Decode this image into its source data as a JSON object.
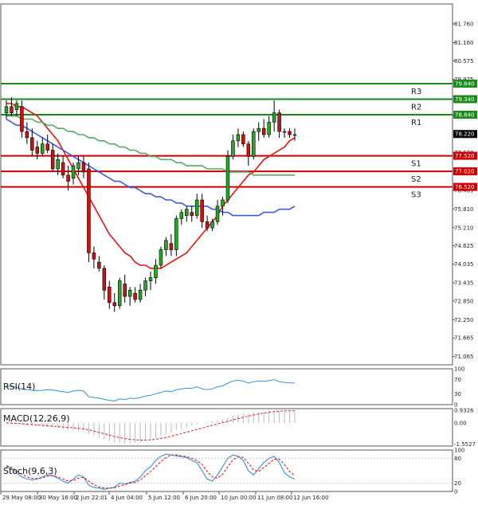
{
  "chart_data": [
    {
      "type": "candlestick",
      "title": "",
      "xlabel": "",
      "ylabel": "",
      "ylim": [
        70.8,
        82.4
      ],
      "y_ticks": [
        "81.760",
        "81.160",
        "80.575",
        "79.975",
        "78.820",
        "77.630",
        "76.405",
        "75.810",
        "75.210",
        "74.625",
        "74.035",
        "73.435",
        "72.850",
        "72.250",
        "71.665",
        "71.065"
      ],
      "x_ticks": [
        "29 May 08:00",
        "30 May 16:00",
        "2 Jun 22:01",
        "4 Jun 04:00",
        "5 Jun 12:00",
        "6 Jun 20:00",
        "10 Jun 00:00",
        "11 Jun 08:00",
        "12 Jun 16:00"
      ],
      "levels": [
        {
          "name": "R3",
          "value": 79.84,
          "tag": "79.840",
          "color": "#1a8a1a"
        },
        {
          "name": "R2",
          "value": 79.34,
          "tag": "79.340",
          "color": "#1a8a1a"
        },
        {
          "name": "R1",
          "value": 78.84,
          "tag": "78.840",
          "color": "#1a8a1a"
        },
        {
          "name": "S1",
          "value": 77.52,
          "tag": "77.520",
          "color": "#cc0000"
        },
        {
          "name": "S2",
          "value": 77.02,
          "tag": "77.020",
          "color": "#cc0000"
        },
        {
          "name": "S3",
          "value": 76.52,
          "tag": "76.520",
          "color": "#cc0000"
        }
      ],
      "current_price": {
        "value": 78.22,
        "tag": "78.220"
      },
      "candles": [
        {
          "o": 78.9,
          "h": 79.3,
          "l": 78.7,
          "c": 79.1
        },
        {
          "o": 79.1,
          "h": 79.4,
          "l": 78.8,
          "c": 78.9
        },
        {
          "o": 79.0,
          "h": 79.3,
          "l": 78.8,
          "c": 79.2
        },
        {
          "o": 79.1,
          "h": 79.3,
          "l": 78.1,
          "c": 78.3
        },
        {
          "o": 78.3,
          "h": 78.6,
          "l": 77.9,
          "c": 78.1
        },
        {
          "o": 78.1,
          "h": 78.4,
          "l": 77.5,
          "c": 77.7
        },
        {
          "o": 77.8,
          "h": 78.0,
          "l": 77.4,
          "c": 77.6
        },
        {
          "o": 77.6,
          "h": 78.1,
          "l": 77.5,
          "c": 77.9
        },
        {
          "o": 77.9,
          "h": 78.2,
          "l": 77.6,
          "c": 77.7
        },
        {
          "o": 77.7,
          "h": 77.9,
          "l": 77.0,
          "c": 77.1
        },
        {
          "o": 77.1,
          "h": 77.6,
          "l": 76.9,
          "c": 77.4
        },
        {
          "o": 77.3,
          "h": 77.5,
          "l": 76.8,
          "c": 76.9
        },
        {
          "o": 76.9,
          "h": 77.2,
          "l": 76.4,
          "c": 76.7
        },
        {
          "o": 76.8,
          "h": 77.3,
          "l": 76.6,
          "c": 77.2
        },
        {
          "o": 77.1,
          "h": 77.5,
          "l": 76.9,
          "c": 77.3
        },
        {
          "o": 77.3,
          "h": 77.5,
          "l": 76.8,
          "c": 77.0
        },
        {
          "o": 77.1,
          "h": 77.3,
          "l": 74.1,
          "c": 74.4
        },
        {
          "o": 74.4,
          "h": 74.6,
          "l": 73.9,
          "c": 74.2
        },
        {
          "o": 74.1,
          "h": 74.3,
          "l": 73.8,
          "c": 73.9
        },
        {
          "o": 73.9,
          "h": 74.0,
          "l": 72.9,
          "c": 73.2
        },
        {
          "o": 73.3,
          "h": 73.5,
          "l": 72.6,
          "c": 72.8
        },
        {
          "o": 72.8,
          "h": 73.1,
          "l": 72.5,
          "c": 72.7
        },
        {
          "o": 72.7,
          "h": 73.6,
          "l": 72.6,
          "c": 73.5
        },
        {
          "o": 73.4,
          "h": 73.7,
          "l": 72.8,
          "c": 73.0
        },
        {
          "o": 73.0,
          "h": 73.3,
          "l": 72.7,
          "c": 73.2
        },
        {
          "o": 73.1,
          "h": 73.3,
          "l": 72.8,
          "c": 72.9
        },
        {
          "o": 72.9,
          "h": 73.4,
          "l": 72.8,
          "c": 73.2
        },
        {
          "o": 73.2,
          "h": 73.6,
          "l": 73.0,
          "c": 73.5
        },
        {
          "o": 73.5,
          "h": 73.8,
          "l": 73.2,
          "c": 73.6
        },
        {
          "o": 73.6,
          "h": 74.2,
          "l": 73.4,
          "c": 74.0
        },
        {
          "o": 74.0,
          "h": 74.6,
          "l": 73.9,
          "c": 74.5
        },
        {
          "o": 74.5,
          "h": 74.9,
          "l": 74.3,
          "c": 74.8
        },
        {
          "o": 74.7,
          "h": 75.0,
          "l": 74.3,
          "c": 74.5
        },
        {
          "o": 74.5,
          "h": 75.6,
          "l": 74.3,
          "c": 75.5
        },
        {
          "o": 75.5,
          "h": 75.8,
          "l": 75.3,
          "c": 75.7
        },
        {
          "o": 75.6,
          "h": 75.9,
          "l": 75.4,
          "c": 75.8
        },
        {
          "o": 75.7,
          "h": 75.9,
          "l": 75.4,
          "c": 75.6
        },
        {
          "o": 75.6,
          "h": 76.3,
          "l": 75.5,
          "c": 76.1
        },
        {
          "o": 76.1,
          "h": 76.3,
          "l": 75.2,
          "c": 75.4
        },
        {
          "o": 75.4,
          "h": 75.6,
          "l": 75.1,
          "c": 75.2
        },
        {
          "o": 75.2,
          "h": 75.5,
          "l": 75.1,
          "c": 75.4
        },
        {
          "o": 75.4,
          "h": 76.1,
          "l": 75.3,
          "c": 75.9
        },
        {
          "o": 75.9,
          "h": 76.2,
          "l": 75.6,
          "c": 76.1
        },
        {
          "o": 76.1,
          "h": 77.7,
          "l": 76.0,
          "c": 77.5
        },
        {
          "o": 77.5,
          "h": 78.2,
          "l": 77.4,
          "c": 78.0
        },
        {
          "o": 78.0,
          "h": 78.4,
          "l": 77.8,
          "c": 78.2
        },
        {
          "o": 78.2,
          "h": 78.3,
          "l": 77.8,
          "c": 77.9
        },
        {
          "o": 77.9,
          "h": 78.0,
          "l": 77.2,
          "c": 77.5
        },
        {
          "o": 77.5,
          "h": 78.4,
          "l": 77.4,
          "c": 78.3
        },
        {
          "o": 78.3,
          "h": 78.6,
          "l": 78.0,
          "c": 78.4
        },
        {
          "o": 78.4,
          "h": 78.7,
          "l": 78.1,
          "c": 78.2
        },
        {
          "o": 78.2,
          "h": 78.8,
          "l": 78.1,
          "c": 78.6
        },
        {
          "o": 78.6,
          "h": 79.3,
          "l": 78.3,
          "c": 78.9
        },
        {
          "o": 78.9,
          "h": 79.0,
          "l": 78.1,
          "c": 78.3
        },
        {
          "o": 78.3,
          "h": 78.4,
          "l": 78.1,
          "c": 78.3
        },
        {
          "o": 78.3,
          "h": 78.4,
          "l": 78.1,
          "c": 78.2
        },
        {
          "o": 78.2,
          "h": 78.4,
          "l": 78.0,
          "c": 78.2
        }
      ],
      "moving_averages": [
        {
          "color": "#ee1111",
          "values": [
            79.2,
            79.2,
            79.1,
            79.1,
            79.0,
            78.9,
            78.8,
            78.6,
            78.4,
            78.2,
            78.0,
            77.7,
            77.4,
            77.1,
            76.8,
            76.5,
            76.2,
            75.9,
            75.6,
            75.3,
            75.0,
            74.8,
            74.6,
            74.4,
            74.3,
            74.1,
            74.0,
            74.0,
            73.9,
            73.9,
            73.9,
            74.0,
            74.1,
            74.2,
            74.3,
            74.4,
            74.6,
            74.8,
            75.0,
            75.2,
            75.4,
            75.6,
            75.9,
            76.1,
            76.3,
            76.5,
            76.7,
            76.9,
            77.0,
            77.2,
            77.4,
            77.5,
            77.6,
            77.7,
            77.8,
            78.0,
            78.1
          ]
        },
        {
          "color": "#3b5bdb",
          "values": [
            78.7,
            78.6,
            78.5,
            78.5,
            78.4,
            78.3,
            78.2,
            78.1,
            78.0,
            77.9,
            77.8,
            77.7,
            77.6,
            77.5,
            77.4,
            77.3,
            77.2,
            77.1,
            77.0,
            76.9,
            76.8,
            76.7,
            76.7,
            76.6,
            76.5,
            76.5,
            76.4,
            76.3,
            76.3,
            76.2,
            76.2,
            76.1,
            76.1,
            76.0,
            76.0,
            75.9,
            75.9,
            75.9,
            75.9,
            75.9,
            75.8,
            75.8,
            75.7,
            75.7,
            75.6,
            75.6,
            75.6,
            75.6,
            75.6,
            75.6,
            75.7,
            75.7,
            75.7,
            75.8,
            75.8,
            75.8,
            75.9
          ]
        },
        {
          "color": "#55aa66",
          "values": [
            78.8,
            78.8,
            78.8,
            78.7,
            78.7,
            78.7,
            78.6,
            78.6,
            78.5,
            78.5,
            78.4,
            78.4,
            78.3,
            78.3,
            78.2,
            78.2,
            78.1,
            78.1,
            78.0,
            78.0,
            77.9,
            77.9,
            77.8,
            77.8,
            77.7,
            77.7,
            77.6,
            77.6,
            77.5,
            77.5,
            77.4,
            77.4,
            77.4,
            77.3,
            77.3,
            77.2,
            77.2,
            77.2,
            77.2,
            77.1,
            77.1,
            77.1,
            77.1,
            77.0,
            77.0,
            77.0,
            77.0,
            77.0,
            76.9,
            76.9,
            76.9,
            76.9,
            76.9,
            76.9,
            76.9,
            76.9,
            76.9
          ]
        }
      ]
    },
    {
      "type": "line",
      "title": "RSI(14)",
      "ylim": [
        0,
        100
      ],
      "y_ticks": [
        "100",
        "70",
        "30",
        "0"
      ],
      "series": [
        {
          "color": "#3a8fd8",
          "values": [
            52,
            50,
            48,
            44,
            42,
            40,
            39,
            40,
            42,
            41,
            38,
            36,
            34,
            38,
            40,
            38,
            22,
            20,
            18,
            15,
            12,
            10,
            16,
            14,
            18,
            17,
            20,
            24,
            26,
            30,
            34,
            38,
            36,
            42,
            44,
            46,
            45,
            50,
            44,
            42,
            44,
            50,
            52,
            60,
            66,
            68,
            66,
            60,
            64,
            66,
            65,
            67,
            70,
            64,
            62,
            61,
            60
          ]
        }
      ]
    },
    {
      "type": "bar",
      "title": "MACD(12,26,9)",
      "ylim": [
        -1.7,
        1.05
      ],
      "y_ticks": [
        "0.9326",
        "0.00",
        "-1.5527"
      ],
      "histogram": [
        -0.05,
        -0.08,
        -0.1,
        -0.14,
        -0.18,
        -0.22,
        -0.26,
        -0.3,
        -0.33,
        -0.37,
        -0.4,
        -0.44,
        -0.48,
        -0.52,
        -0.55,
        -0.6,
        -0.8,
        -0.95,
        -1.1,
        -1.2,
        -1.35,
        -1.45,
        -1.5,
        -1.52,
        -1.5,
        -1.45,
        -1.4,
        -1.3,
        -1.2,
        -1.1,
        -0.95,
        -0.8,
        -0.7,
        -0.55,
        -0.42,
        -0.3,
        -0.2,
        -0.1,
        -0.02,
        0.05,
        0.12,
        0.2,
        0.28,
        0.4,
        0.52,
        0.62,
        0.68,
        0.72,
        0.78,
        0.82,
        0.85,
        0.88,
        0.92,
        0.9,
        0.88,
        0.86,
        0.85
      ],
      "signal": [
        0.0,
        -0.02,
        -0.04,
        -0.06,
        -0.09,
        -0.12,
        -0.15,
        -0.18,
        -0.21,
        -0.24,
        -0.27,
        -0.3,
        -0.33,
        -0.36,
        -0.4,
        -0.44,
        -0.52,
        -0.6,
        -0.7,
        -0.8,
        -0.9,
        -1.0,
        -1.08,
        -1.15,
        -1.2,
        -1.24,
        -1.26,
        -1.26,
        -1.24,
        -1.2,
        -1.14,
        -1.06,
        -0.98,
        -0.88,
        -0.78,
        -0.68,
        -0.58,
        -0.48,
        -0.38,
        -0.28,
        -0.18,
        -0.08,
        0.02,
        0.12,
        0.22,
        0.32,
        0.42,
        0.5,
        0.58,
        0.65,
        0.72,
        0.78,
        0.83,
        0.86,
        0.88,
        0.89,
        0.9
      ]
    },
    {
      "type": "line",
      "title": "Stoch(9,6,3)",
      "ylim": [
        0,
        100
      ],
      "y_ticks": [
        "100",
        "80",
        "20",
        "0"
      ],
      "series": [
        {
          "color": "#3a8fd8",
          "values": [
            60,
            55,
            45,
            35,
            30,
            28,
            30,
            35,
            40,
            38,
            32,
            25,
            20,
            30,
            40,
            35,
            15,
            10,
            8,
            5,
            8,
            10,
            20,
            18,
            22,
            25,
            35,
            50,
            60,
            75,
            85,
            90,
            88,
            86,
            84,
            82,
            75,
            70,
            50,
            30,
            25,
            40,
            60,
            80,
            88,
            85,
            75,
            50,
            40,
            55,
            70,
            80,
            85,
            70,
            45,
            35,
            30
          ]
        },
        {
          "color": "#dd2222",
          "values": [
            62,
            58,
            50,
            42,
            35,
            32,
            31,
            33,
            37,
            38,
            35,
            30,
            25,
            27,
            32,
            34,
            25,
            16,
            11,
            8,
            8,
            9,
            13,
            16,
            20,
            22,
            28,
            38,
            48,
            60,
            72,
            82,
            88,
            88,
            86,
            84,
            80,
            75,
            65,
            48,
            35,
            32,
            42,
            60,
            76,
            84,
            82,
            68,
            52,
            48,
            58,
            68,
            78,
            78,
            65,
            48,
            38
          ]
        }
      ]
    }
  ]
}
